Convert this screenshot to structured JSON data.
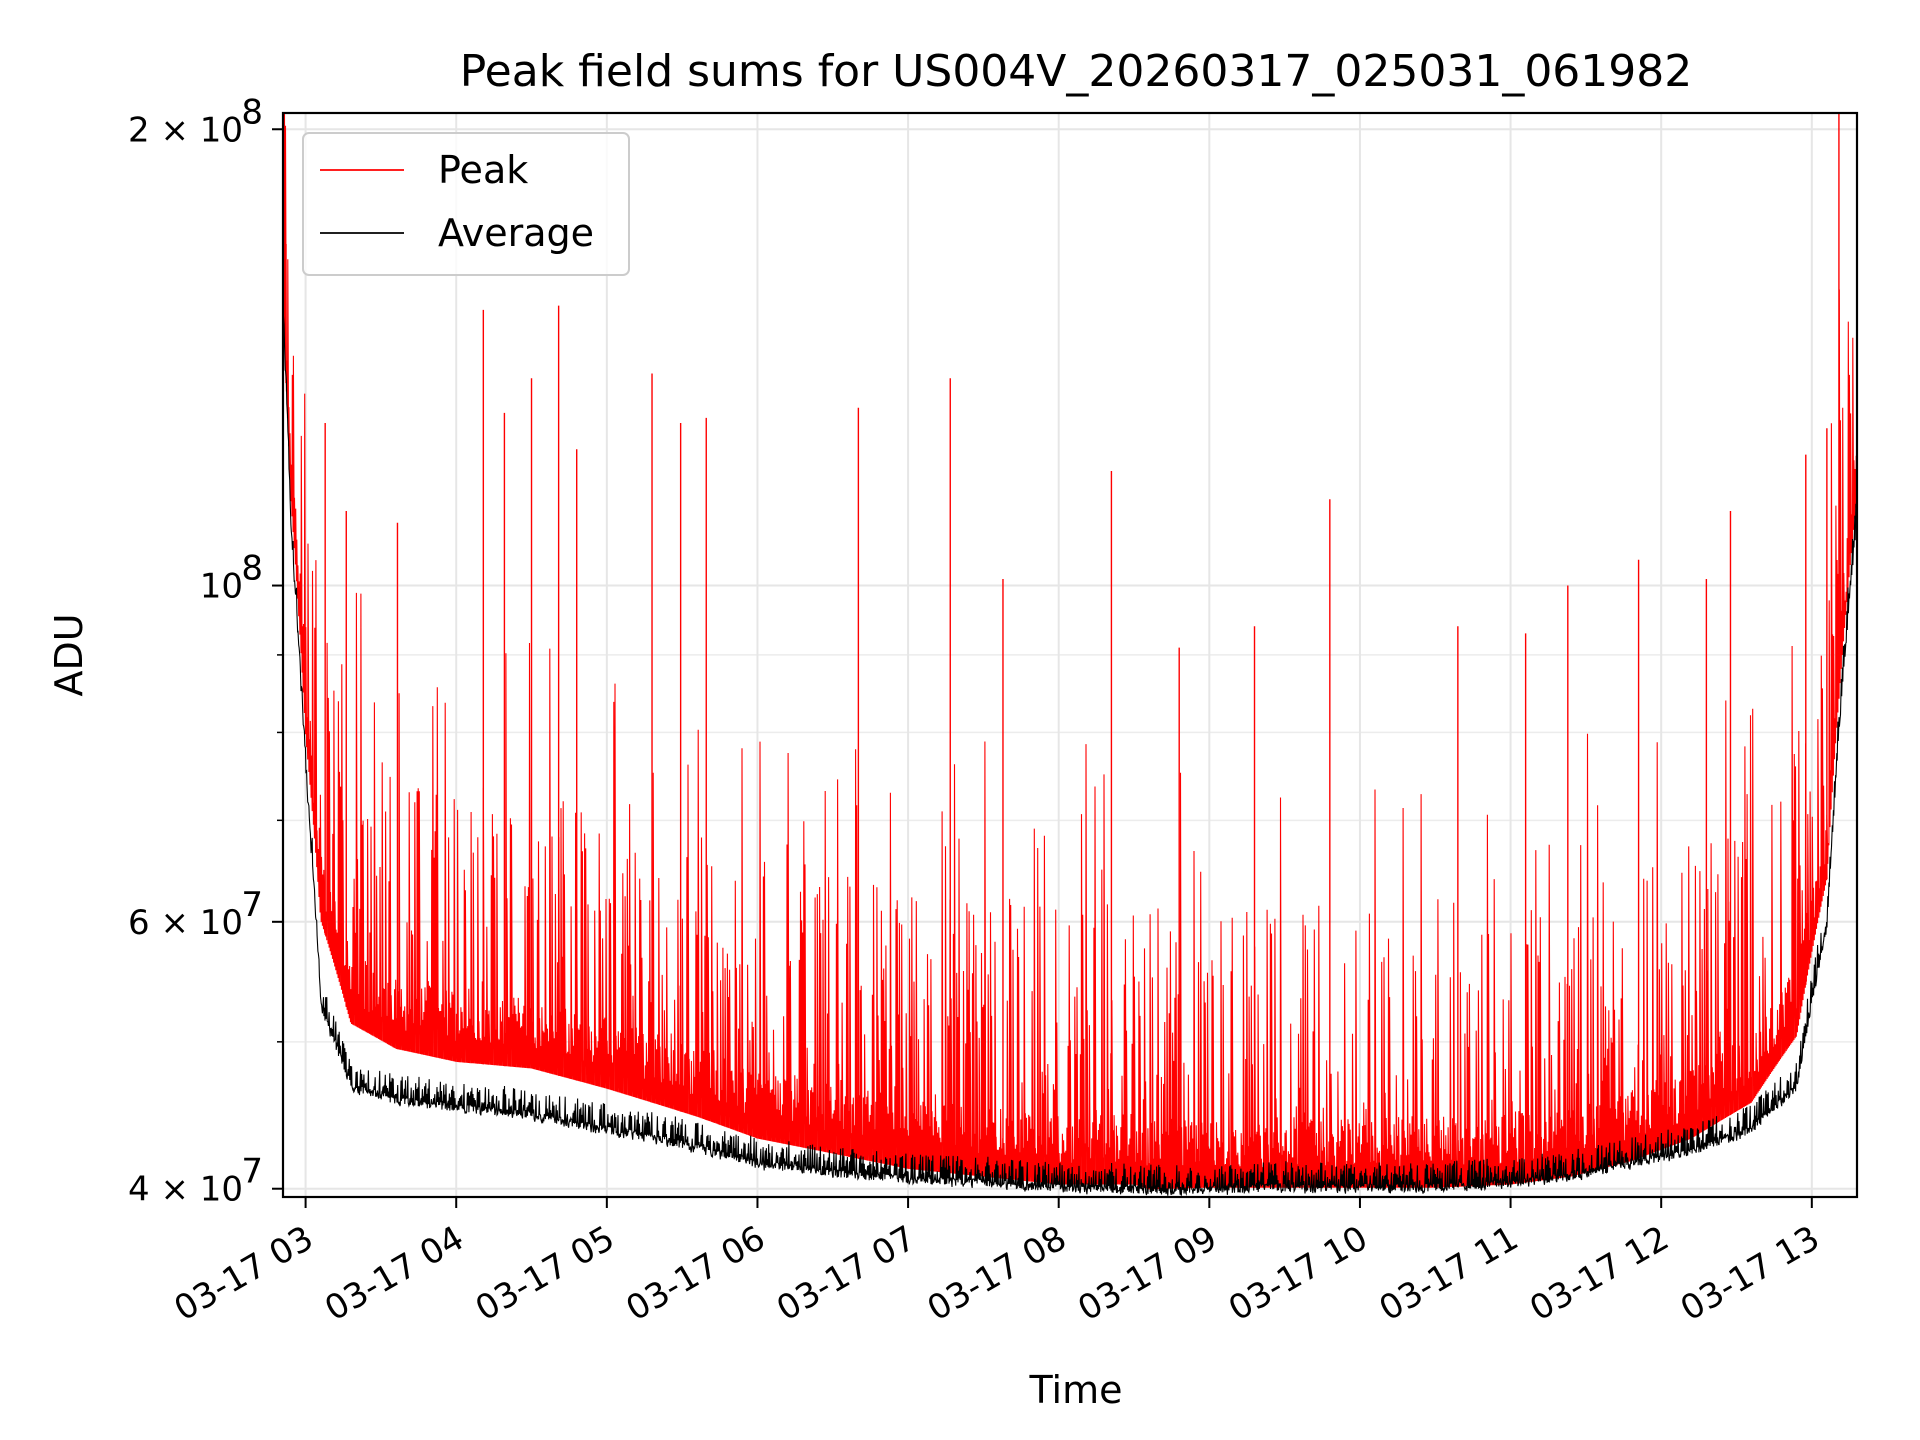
{
  "chart_data": {
    "type": "line",
    "title": "Peak field sums for US004V_20260317_025031_061982",
    "xlabel": "Time",
    "ylabel": "ADU",
    "yscale": "log",
    "ylim": [
      39500000,
      205000000
    ],
    "xlim": [
      2.85,
      13.3
    ],
    "grid": true,
    "legend_position": "top-left",
    "x_tick_values": [
      3,
      4,
      5,
      6,
      7,
      8,
      9,
      10,
      11,
      12,
      13
    ],
    "x_tick_labels": [
      "03-17 03",
      "03-17 04",
      "03-17 05",
      "03-17 06",
      "03-17 07",
      "03-17 08",
      "03-17 09",
      "03-17 10",
      "03-17 11",
      "03-17 12",
      "03-17 13"
    ],
    "y_major_ticks": [
      {
        "value": 200000000,
        "base": "2 × 10",
        "exp": "8"
      },
      {
        "value": 100000000,
        "base": "10",
        "exp": "8"
      },
      {
        "value": 60000000,
        "base": "6 × 10",
        "exp": "7"
      },
      {
        "value": 40000000,
        "base": "4 × 10",
        "exp": "7"
      }
    ],
    "y_minor_ticks": [
      50000000,
      70000000,
      80000000,
      90000000
    ],
    "series": [
      {
        "name": "Peak",
        "color": "#ff0000",
        "style": "spiky upper envelope",
        "x": [
          2.85,
          2.9,
          3.0,
          3.1,
          3.3,
          3.6,
          4.0,
          4.5,
          5.0,
          5.3,
          5.6,
          6.0,
          6.5,
          7.0,
          7.5,
          8.0,
          8.5,
          8.6,
          9.0,
          9.5,
          10.0,
          10.5,
          11.0,
          11.4,
          11.8,
          12.2,
          12.6,
          12.9,
          13.1,
          13.3
        ],
        "baseline": [
          155000000,
          118000000,
          82000000,
          62000000,
          53000000,
          51000000,
          50000000,
          49500000,
          48000000,
          47000000,
          46000000,
          44500000,
          43500000,
          42500000,
          42000000,
          41500000,
          41500000,
          41200000,
          41300000,
          41300000,
          41300000,
          41300000,
          41500000,
          42000000,
          43000000,
          44500000,
          47000000,
          52000000,
          66000000,
          118000000
        ],
        "spike_peaks": [
          {
            "x": 2.87,
            "y": 168000000
          },
          {
            "x": 3.13,
            "y": 128000000
          },
          {
            "x": 3.27,
            "y": 112000000
          },
          {
            "x": 3.61,
            "y": 110000000
          },
          {
            "x": 4.18,
            "y": 152000000
          },
          {
            "x": 4.32,
            "y": 130000000
          },
          {
            "x": 4.5,
            "y": 137000000
          },
          {
            "x": 4.68,
            "y": 153000000
          },
          {
            "x": 4.8,
            "y": 123000000
          },
          {
            "x": 5.3,
            "y": 138000000
          },
          {
            "x": 5.49,
            "y": 128000000
          },
          {
            "x": 5.66,
            "y": 129000000
          },
          {
            "x": 6.67,
            "y": 131000000
          },
          {
            "x": 7.28,
            "y": 137000000
          },
          {
            "x": 7.63,
            "y": 101000000
          },
          {
            "x": 8.35,
            "y": 119000000
          },
          {
            "x": 8.8,
            "y": 91000000
          },
          {
            "x": 9.3,
            "y": 94000000
          },
          {
            "x": 9.8,
            "y": 114000000
          },
          {
            "x": 10.65,
            "y": 94000000
          },
          {
            "x": 11.1,
            "y": 93000000
          },
          {
            "x": 11.38,
            "y": 100000000
          },
          {
            "x": 11.85,
            "y": 104000000
          },
          {
            "x": 12.3,
            "y": 101000000
          },
          {
            "x": 12.46,
            "y": 112000000
          },
          {
            "x": 12.96,
            "y": 122000000
          },
          {
            "x": 13.1,
            "y": 127000000
          },
          {
            "x": 13.18,
            "y": 205000000
          },
          {
            "x": 13.3,
            "y": 136000000
          }
        ]
      },
      {
        "name": "Average",
        "color": "#000000",
        "style": "dense lower band",
        "x": [
          2.85,
          2.9,
          3.0,
          3.1,
          3.3,
          3.6,
          4.0,
          4.5,
          5.0,
          5.3,
          5.6,
          6.0,
          6.5,
          7.0,
          7.5,
          8.0,
          8.5,
          8.6,
          9.0,
          9.5,
          10.0,
          10.5,
          11.0,
          11.4,
          11.8,
          12.2,
          12.6,
          12.9,
          13.1,
          13.3
        ],
        "mean": [
          152000000,
          110000000,
          76000000,
          53000000,
          47000000,
          46000000,
          45500000,
          45000000,
          44000000,
          43500000,
          42800000,
          41800000,
          41200000,
          40800000,
          40600000,
          40300000,
          40200000,
          40100000,
          40200000,
          40300000,
          40300000,
          40300000,
          40600000,
          41000000,
          41800000,
          42600000,
          44000000,
          47000000,
          60000000,
          112000000
        ]
      }
    ]
  }
}
